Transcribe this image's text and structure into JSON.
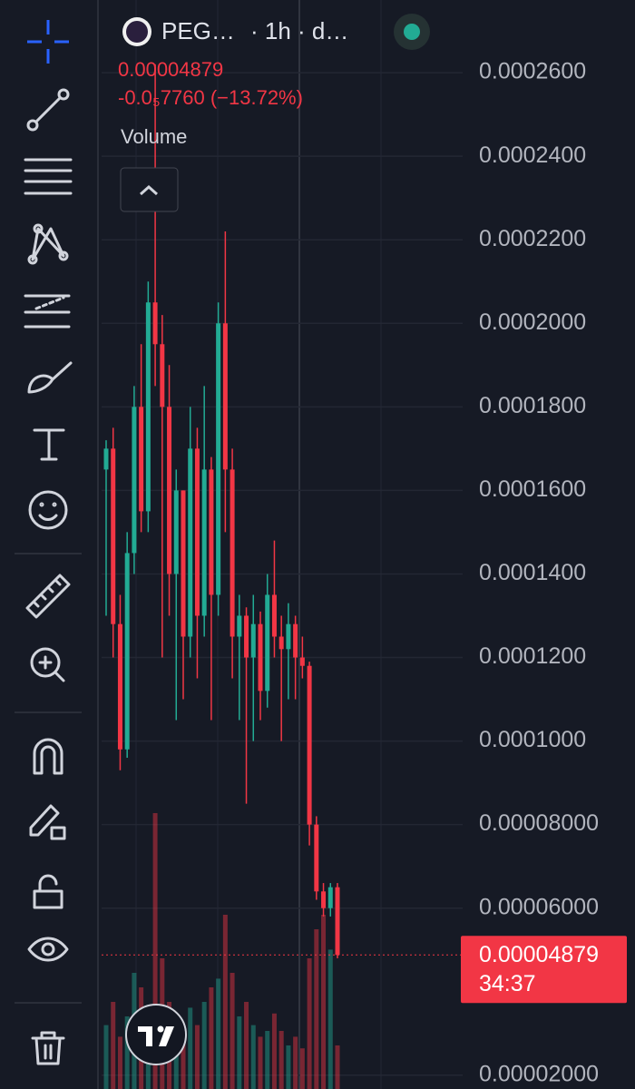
{
  "header": {
    "symbol": "PEG…",
    "interval": "· 1h · d…"
  },
  "legend": {
    "price": "0.00004879",
    "change": "-0.0₅7760 (−13.72%)",
    "volume": "Volume"
  },
  "price_label": {
    "price": "0.00004879",
    "countdown": "34:37"
  },
  "chart_data": {
    "type": "candlestick",
    "open": [
      0.000165,
      0.00017,
      0.000128,
      9.8e-05,
      0.000145,
      0.00018,
      0.000155,
      0.000205,
      0.000195,
      0.00018,
      0.00014,
      0.00016,
      0.000125,
      0.00017,
      0.00013,
      0.000165,
      0.000135,
      0.0002,
      0.000165,
      0.000125,
      0.00013,
      0.00012,
      0.000128,
      0.000112,
      0.000135,
      0.000125,
      0.000122,
      0.000128,
      0.00012,
      0.000118,
      8e-05,
      6.4e-05,
      6e-05,
      6.5e-05
    ],
    "high": [
      0.000172,
      0.000175,
      0.000135,
      0.00015,
      0.000185,
      0.000195,
      0.00021,
      0.000262,
      0.000202,
      0.00019,
      0.000165,
      0.00016,
      0.00018,
      0.000175,
      0.000185,
      0.000168,
      0.000205,
      0.000222,
      0.00017,
      0.000135,
      0.000132,
      0.000135,
      0.000131,
      0.00014,
      0.000148,
      0.00013,
      0.000133,
      0.00013,
      0.000125,
      0.000119,
      8.2e-05,
      6.6e-05,
      6.6e-05,
      6.6e-05
    ],
    "low": [
      0.00013,
      0.00012,
      9.3e-05,
      9.6e-05,
      0.00014,
      0.00015,
      0.00015,
      0.000185,
      0.00012,
      0.00013,
      0.000105,
      0.00011,
      0.00012,
      0.000115,
      0.000125,
      0.000105,
      0.00013,
      0.00015,
      0.000115,
      0.000105,
      8.5e-05,
      0.0001,
      0.000105,
      0.000108,
      0.00012,
      0.0001,
      0.00011,
      0.00011,
      0.000115,
      7.5e-05,
      6.2e-05,
      5.8e-05,
      5.8e-05,
      4.8e-05
    ],
    "close": [
      0.00017,
      0.000128,
      9.8e-05,
      0.000145,
      0.00018,
      0.000155,
      0.000205,
      0.000195,
      0.00018,
      0.00014,
      0.00016,
      0.000125,
      0.00017,
      0.00013,
      0.000165,
      0.000135,
      0.0002,
      0.000165,
      0.000125,
      0.00013,
      0.00012,
      0.000128,
      0.000112,
      0.000135,
      0.000125,
      0.000122,
      0.000128,
      0.00012,
      0.000118,
      8e-05,
      6.4e-05,
      6e-05,
      6.5e-05,
      4.879e-05
    ],
    "volume": [
      22,
      30,
      18,
      25,
      40,
      35,
      28,
      95,
      45,
      30,
      25,
      20,
      28,
      22,
      30,
      35,
      38,
      60,
      40,
      25,
      30,
      22,
      18,
      20,
      26,
      20,
      15,
      18,
      14,
      45,
      55,
      60,
      48,
      15
    ],
    "volume_lim": [
      0,
      100
    ],
    "up_color": "#22ab94",
    "down_color": "#f23645",
    "ylim": [
      1.67e-05,
      0.0002774
    ],
    "yticks": [
      {
        "value": 0.00026,
        "label": "0.0002600"
      },
      {
        "value": 0.00024,
        "label": "0.0002400"
      },
      {
        "value": 0.00022,
        "label": "0.0002200"
      },
      {
        "value": 0.0002,
        "label": "0.0002000"
      },
      {
        "value": 0.00018,
        "label": "0.0001800"
      },
      {
        "value": 0.00016,
        "label": "0.0001600"
      },
      {
        "value": 0.00014,
        "label": "0.0001400"
      },
      {
        "value": 0.00012,
        "label": "0.0001200"
      },
      {
        "value": 0.0001,
        "label": "0.0001000"
      },
      {
        "value": 8e-05,
        "label": "0.00008000"
      },
      {
        "value": 6e-05,
        "label": "0.00006000"
      },
      {
        "value": 2e-05,
        "label": "0.00002000"
      }
    ],
    "grid": true
  }
}
